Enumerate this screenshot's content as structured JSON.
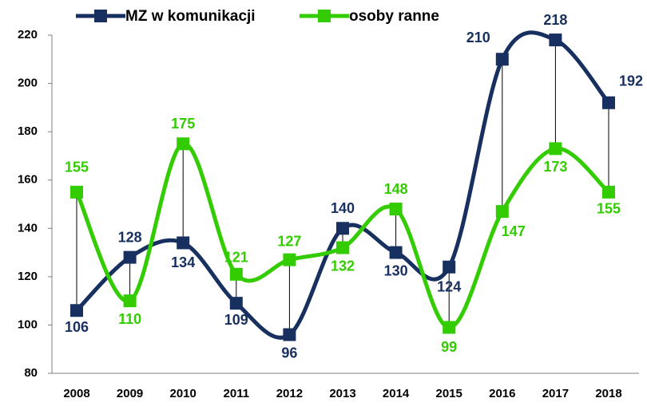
{
  "chart_data": {
    "type": "line",
    "categories": [
      "2008",
      "2009",
      "2010",
      "2011",
      "2012",
      "2013",
      "2014",
      "2015",
      "2016",
      "2017",
      "2018"
    ],
    "series": [
      {
        "name": "MZ w komunikacji",
        "color": "#17305f",
        "values": [
          106,
          128,
          134,
          109,
          96,
          140,
          130,
          124,
          210,
          218,
          192
        ]
      },
      {
        "name": "osoby ranne",
        "color": "#33cc00",
        "values": [
          155,
          110,
          175,
          121,
          127,
          132,
          148,
          99,
          147,
          173,
          155
        ]
      }
    ],
    "ylim": [
      80,
      220
    ],
    "yticks": [
      80,
      100,
      120,
      140,
      160,
      180,
      200,
      220
    ],
    "legend": "top",
    "hi_lo_lines": true,
    "smooth": true
  }
}
